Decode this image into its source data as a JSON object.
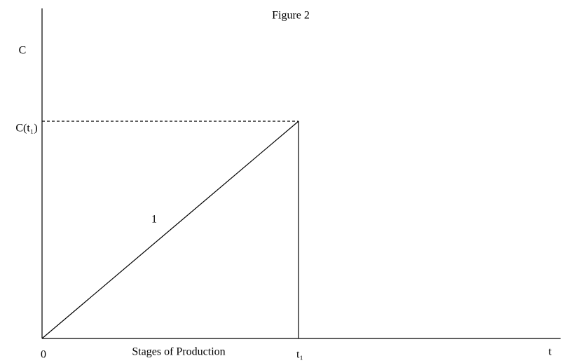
{
  "title": "Figure 2",
  "y_axis_label": "C",
  "y_marker_label": "C(t₁)",
  "curve_label": "1",
  "origin_label": "0",
  "x_axis_caption": "Stages of Production",
  "x_marker_label": "t₁",
  "x_axis_label": "t"
}
